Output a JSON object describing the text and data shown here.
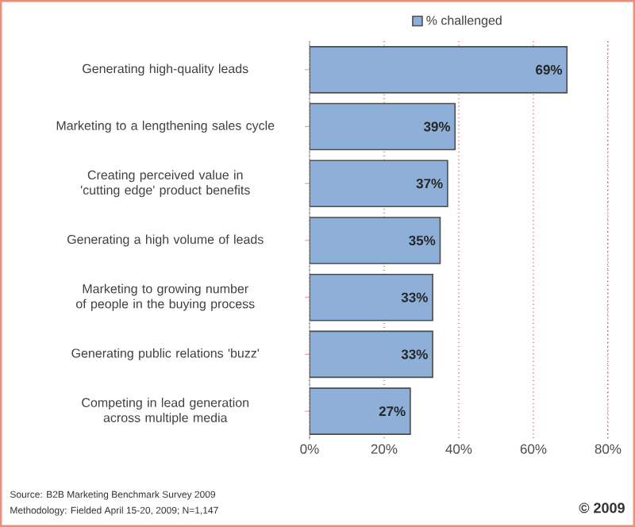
{
  "chart_data": {
    "type": "bar",
    "orientation": "horizontal",
    "categories": [
      "Generating high-quality leads",
      "Marketing to a lengthening sales cycle",
      "Creating perceived value in 'cutting edge' product benefits",
      "Generating a high volume of leads",
      "Marketing to growing number of people in the buying process",
      "Generating public relations 'buzz'",
      "Competing in lead generation across multiple media"
    ],
    "series": [
      {
        "name": "% challenged",
        "color": "#8eb0d8",
        "values": [
          69,
          39,
          37,
          35,
          33,
          33,
          27
        ],
        "value_labels": [
          "69%",
          "39%",
          "37%",
          "35%",
          "33%",
          "33%",
          "27%"
        ]
      }
    ],
    "xlim": [
      0,
      80
    ],
    "xticks": [
      {
        "value": 0,
        "label": "0%"
      },
      {
        "value": 20,
        "label": "20%"
      },
      {
        "value": 40,
        "label": "40%"
      },
      {
        "value": 60,
        "label": "60%"
      },
      {
        "value": 80,
        "label": "80%"
      }
    ],
    "grid": "x",
    "legend": "top",
    "annotations": [
      "Source: B2B Marketing Benchmark Survey 2009",
      "Methodology: Fielded  April 15-20, 2009; N=1,147",
      "© 2009"
    ]
  }
}
